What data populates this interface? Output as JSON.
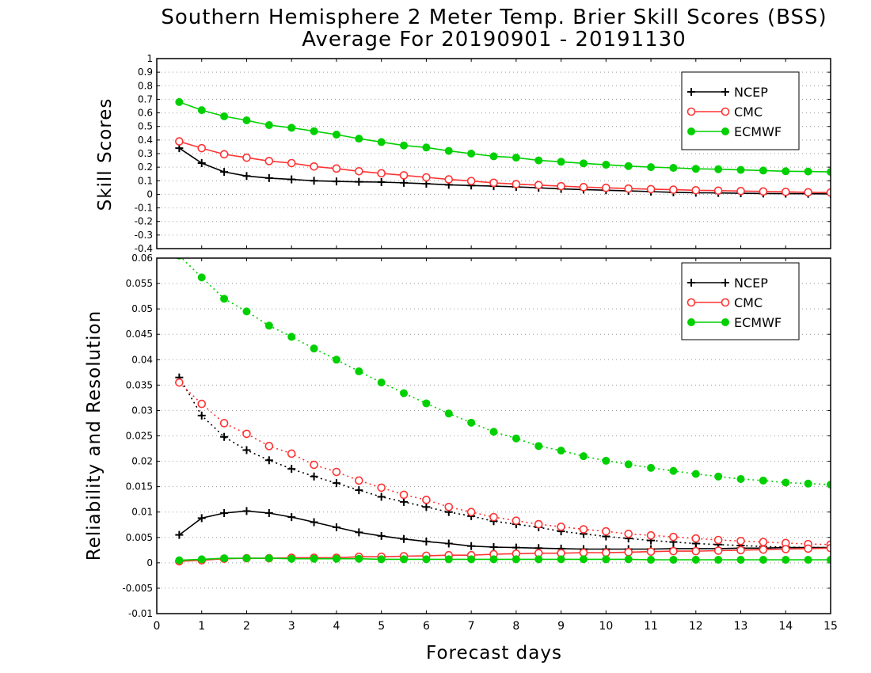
{
  "chart_data": [
    {
      "type": "line",
      "panel": "top",
      "title_line1": "Southern Hemisphere 2 Meter Temp. Brier Skill Scores (BSS)",
      "title_line2": "Average For 20190901 - 20191130",
      "ylabel": "Skill Scores",
      "xlabel": "Forecast days",
      "xlim": [
        0,
        15
      ],
      "ylim": [
        -0.4,
        1
      ],
      "yticks": [
        "-0.4",
        "-0.3",
        "-0.2",
        "-0.1",
        "0",
        "0.1",
        "0.2",
        "0.3",
        "0.4",
        "0.5",
        "0.6",
        "0.7",
        "0.8",
        "0.9",
        "1"
      ],
      "xticks": [
        "0",
        "1",
        "2",
        "3",
        "4",
        "5",
        "6",
        "7",
        "8",
        "9",
        "10",
        "11",
        "12",
        "13",
        "14",
        "15"
      ],
      "grid": true,
      "legend_position": "top-right",
      "x": [
        0.5,
        1,
        1.5,
        2,
        2.5,
        3,
        3.5,
        4,
        4.5,
        5,
        5.5,
        6,
        6.5,
        7,
        7.5,
        8,
        8.5,
        9,
        9.5,
        10,
        10.5,
        11,
        11.5,
        12,
        12.5,
        13,
        13.5,
        14,
        14.5,
        15
      ],
      "series": [
        {
          "name": "NCEP",
          "color": "#000000",
          "marker": "plus",
          "values": [
            0.34,
            0.23,
            0.165,
            0.135,
            0.12,
            0.11,
            0.1,
            0.095,
            0.092,
            0.09,
            0.085,
            0.078,
            0.07,
            0.065,
            0.06,
            0.055,
            0.048,
            0.04,
            0.035,
            0.03,
            0.025,
            0.02,
            0.015,
            0.012,
            0.01,
            0.008,
            0.006,
            0.005,
            0.004,
            0.003
          ]
        },
        {
          "name": "CMC",
          "color": "#ff3333",
          "marker": "open-circle",
          "values": [
            0.39,
            0.34,
            0.295,
            0.27,
            0.245,
            0.23,
            0.205,
            0.19,
            0.17,
            0.155,
            0.14,
            0.125,
            0.11,
            0.098,
            0.085,
            0.075,
            0.068,
            0.06,
            0.053,
            0.048,
            0.042,
            0.038,
            0.034,
            0.03,
            0.027,
            0.024,
            0.021,
            0.018,
            0.015,
            0.013
          ]
        },
        {
          "name": "ECMWF",
          "color": "#00d000",
          "marker": "filled-circle",
          "values": [
            0.68,
            0.62,
            0.575,
            0.545,
            0.51,
            0.49,
            0.465,
            0.44,
            0.41,
            0.385,
            0.36,
            0.345,
            0.32,
            0.3,
            0.28,
            0.27,
            0.25,
            0.24,
            0.228,
            0.218,
            0.208,
            0.2,
            0.195,
            0.188,
            0.185,
            0.18,
            0.175,
            0.17,
            0.168,
            0.165
          ]
        }
      ]
    },
    {
      "type": "line",
      "panel": "bottom",
      "ylabel": "Reliability and Resolution",
      "xlabel": "Forecast days",
      "xlim": [
        0,
        15
      ],
      "ylim": [
        -0.01,
        0.06
      ],
      "yticks": [
        "-0.01",
        "-0.005",
        "0",
        "0.005",
        "0.01",
        "0.015",
        "0.02",
        "0.025",
        "0.03",
        "0.035",
        "0.04",
        "0.045",
        "0.05",
        "0.055",
        "0.06"
      ],
      "xticks": [
        "0",
        "1",
        "2",
        "3",
        "4",
        "5",
        "6",
        "7",
        "8",
        "9",
        "10",
        "11",
        "12",
        "13",
        "14",
        "15"
      ],
      "grid": true,
      "legend_position": "top-right",
      "x": [
        0.5,
        1,
        1.5,
        2,
        2.5,
        3,
        3.5,
        4,
        4.5,
        5,
        5.5,
        6,
        6.5,
        7,
        7.5,
        8,
        8.5,
        9,
        9.5,
        10,
        10.5,
        11,
        11.5,
        12,
        12.5,
        13,
        13.5,
        14,
        14.5,
        15
      ],
      "series": [
        {
          "name": "NCEP",
          "component": "resolution",
          "style": "dotted",
          "color": "#000000",
          "marker": "plus",
          "values": [
            0.0365,
            0.029,
            0.0248,
            0.0222,
            0.0202,
            0.0185,
            0.017,
            0.0157,
            0.0143,
            0.013,
            0.012,
            0.011,
            0.01,
            0.0092,
            0.0082,
            0.0076,
            0.007,
            0.0062,
            0.0057,
            0.0052,
            0.0048,
            0.0044,
            0.0041,
            0.0038,
            0.0036,
            0.0034,
            0.0032,
            0.0031,
            0.003,
            0.003
          ]
        },
        {
          "name": "NCEP",
          "component": "reliability",
          "style": "solid",
          "color": "#000000",
          "marker": "plus",
          "values": [
            0.0055,
            0.0088,
            0.0098,
            0.0102,
            0.0098,
            0.009,
            0.008,
            0.007,
            0.006,
            0.0053,
            0.0047,
            0.0042,
            0.0038,
            0.0033,
            0.0031,
            0.003,
            0.0029,
            0.0028,
            0.0027,
            0.0027,
            0.0027,
            0.0027,
            0.0028,
            0.0028,
            0.0028,
            0.0029,
            0.0029,
            0.003,
            0.003,
            0.003
          ]
        },
        {
          "name": "CMC",
          "component": "resolution",
          "style": "dotted",
          "color": "#ff3333",
          "marker": "open-circle",
          "values": [
            0.0355,
            0.0313,
            0.0275,
            0.0254,
            0.023,
            0.0215,
            0.0193,
            0.0179,
            0.0162,
            0.0148,
            0.0134,
            0.0124,
            0.011,
            0.01,
            0.009,
            0.0083,
            0.0076,
            0.0071,
            0.0066,
            0.0062,
            0.0057,
            0.0054,
            0.0051,
            0.0048,
            0.0045,
            0.0043,
            0.0041,
            0.0039,
            0.0037,
            0.0036
          ]
        },
        {
          "name": "CMC",
          "component": "reliability",
          "style": "solid",
          "color": "#ff3333",
          "marker": "open-circle",
          "values": [
            0.0003,
            0.0005,
            0.0008,
            0.0009,
            0.0009,
            0.001,
            0.001,
            0.001,
            0.0012,
            0.0012,
            0.0013,
            0.0014,
            0.0015,
            0.0015,
            0.0017,
            0.0018,
            0.0019,
            0.0019,
            0.002,
            0.002,
            0.0021,
            0.0022,
            0.0023,
            0.0023,
            0.0024,
            0.0025,
            0.0026,
            0.0027,
            0.0028,
            0.0029
          ]
        },
        {
          "name": "ECMWF",
          "component": "resolution",
          "style": "dotted",
          "color": "#00d000",
          "marker": "filled-circle",
          "values": [
            0.0605,
            0.0562,
            0.052,
            0.0495,
            0.0467,
            0.0445,
            0.0422,
            0.04,
            0.0377,
            0.0355,
            0.0334,
            0.0314,
            0.0294,
            0.0276,
            0.0258,
            0.0245,
            0.023,
            0.0221,
            0.021,
            0.0201,
            0.0194,
            0.0187,
            0.0181,
            0.0175,
            0.017,
            0.0165,
            0.0162,
            0.0158,
            0.0156,
            0.0154
          ]
        },
        {
          "name": "ECMWF",
          "component": "reliability",
          "style": "solid",
          "color": "#00d000",
          "marker": "filled-circle",
          "values": [
            0.0005,
            0.0007,
            0.0009,
            0.0009,
            0.0009,
            0.0008,
            0.0008,
            0.0008,
            0.0008,
            0.0007,
            0.0007,
            0.0007,
            0.0007,
            0.0007,
            0.0007,
            0.0007,
            0.0007,
            0.0007,
            0.0007,
            0.0007,
            0.0007,
            0.0006,
            0.0006,
            0.0006,
            0.0006,
            0.0006,
            0.0006,
            0.0006,
            0.0006,
            0.0006
          ]
        }
      ]
    }
  ]
}
